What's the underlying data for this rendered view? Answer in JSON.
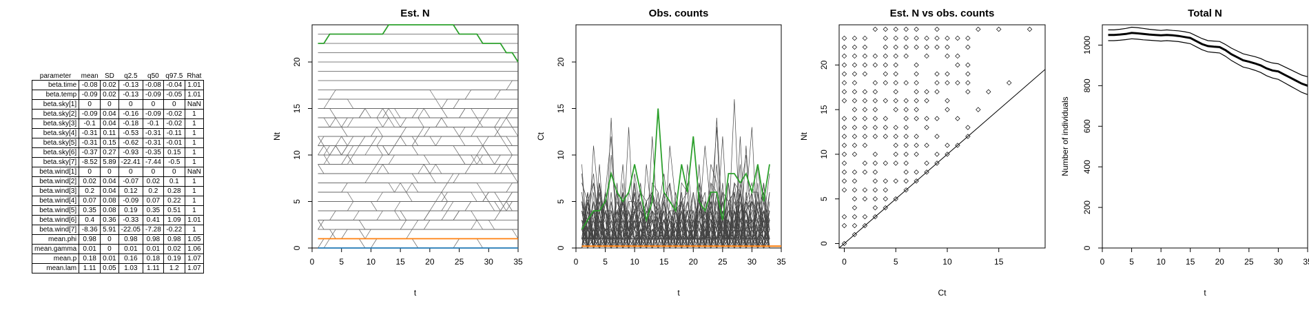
{
  "param_table": {
    "columns": [
      "parameter",
      "mean",
      "SD",
      "q2.5",
      "q50",
      "q97.5",
      "Rhat"
    ],
    "rows": [
      [
        "beta.time",
        "-0.08",
        "0.02",
        "-0.13",
        "-0.08",
        "-0.04",
        "1.01"
      ],
      [
        "beta.temp",
        "-0.09",
        "0.02",
        "-0.13",
        "-0.09",
        "-0.05",
        "1.01"
      ],
      [
        "beta.sky[1]",
        "0",
        "0",
        "0",
        "0",
        "0",
        "NaN"
      ],
      [
        "beta.sky[2]",
        "-0.09",
        "0.04",
        "-0.16",
        "-0.09",
        "-0.02",
        "1"
      ],
      [
        "beta.sky[3]",
        "-0.1",
        "0.04",
        "-0.18",
        "-0.1",
        "-0.02",
        "1"
      ],
      [
        "beta.sky[4]",
        "-0.31",
        "0.11",
        "-0.53",
        "-0.31",
        "-0.11",
        "1"
      ],
      [
        "beta.sky[5]",
        "-0.31",
        "0.15",
        "-0.62",
        "-0.31",
        "-0.01",
        "1"
      ],
      [
        "beta.sky[6]",
        "-0.37",
        "0.27",
        "-0.93",
        "-0.35",
        "0.15",
        "1"
      ],
      [
        "beta.sky[7]",
        "-8.52",
        "5.89",
        "-22.41",
        "-7.44",
        "-0.5",
        "1"
      ],
      [
        "beta.wind[1]",
        "0",
        "0",
        "0",
        "0",
        "0",
        "NaN"
      ],
      [
        "beta.wind[2]",
        "0.02",
        "0.04",
        "-0.07",
        "0.02",
        "0.1",
        "1"
      ],
      [
        "beta.wind[3]",
        "0.2",
        "0.04",
        "0.12",
        "0.2",
        "0.28",
        "1"
      ],
      [
        "beta.wind[4]",
        "0.07",
        "0.08",
        "-0.09",
        "0.07",
        "0.22",
        "1"
      ],
      [
        "beta.wind[5]",
        "0.35",
        "0.08",
        "0.19",
        "0.35",
        "0.51",
        "1"
      ],
      [
        "beta.wind[6]",
        "0.4",
        "0.36",
        "-0.33",
        "0.41",
        "1.09",
        "1.01"
      ],
      [
        "beta.wind[7]",
        "-8.36",
        "5.91",
        "-22.05",
        "-7.28",
        "-0.22",
        "1"
      ],
      [
        "mean.phi",
        "0.98",
        "0",
        "0.98",
        "0.98",
        "0.98",
        "1.05"
      ],
      [
        "mean.gamma",
        "0.01",
        "0",
        "0.01",
        "0.01",
        "0.02",
        "1.06"
      ],
      [
        "mean.p",
        "0.18",
        "0.01",
        "0.16",
        "0.18",
        "0.19",
        "1.07"
      ],
      [
        "mean.lam",
        "1.11",
        "0.05",
        "1.03",
        "1.11",
        "1.2",
        "1.07"
      ]
    ]
  },
  "chart_data": [
    {
      "type": "line",
      "title": "Est. N",
      "xlabel": "t",
      "ylabel": "Nt",
      "xlim": [
        0,
        35
      ],
      "ylim": [
        0,
        24
      ],
      "xticks": [
        "0",
        "5",
        "10",
        "15",
        "20",
        "25",
        "30",
        "35"
      ],
      "yticks": [
        "0",
        "5",
        "10",
        "15",
        "20"
      ],
      "background_levels": [
        0,
        1,
        2,
        3,
        4,
        5,
        6,
        7,
        8,
        9,
        10,
        11,
        12,
        13,
        14,
        15,
        16,
        17,
        18,
        19,
        20,
        21,
        22,
        23
      ],
      "series": [
        {
          "color": "#2ca02c",
          "x": [
            1,
            2,
            3,
            4,
            5,
            6,
            7,
            8,
            9,
            10,
            11,
            12,
            13,
            14,
            15,
            16,
            17,
            18,
            19,
            20,
            21,
            22,
            23,
            24,
            25,
            26,
            27,
            28,
            29,
            30,
            31,
            32,
            33,
            34,
            35
          ],
          "values": [
            22,
            22,
            23,
            23,
            23,
            23,
            23,
            23,
            23,
            23,
            23,
            23,
            24,
            24,
            24,
            24,
            24,
            24,
            24,
            24,
            24,
            24,
            24,
            24,
            23,
            23,
            23,
            23,
            22,
            22,
            22,
            22,
            21,
            21,
            20
          ]
        },
        {
          "color": "#ff7f0e",
          "x": [
            1,
            35
          ],
          "values": [
            1,
            1
          ]
        },
        {
          "color": "#1f77b4",
          "x": [
            1,
            35
          ],
          "values": [
            0,
            0
          ]
        }
      ]
    },
    {
      "type": "line",
      "title": "Obs. counts",
      "xlabel": "t",
      "ylabel": "Ct",
      "xlim": [
        0,
        35
      ],
      "ylim": [
        0,
        24
      ],
      "xticks": [
        "0",
        "5",
        "10",
        "15",
        "20",
        "25",
        "30",
        "35"
      ],
      "yticks": [
        "0",
        "5",
        "10",
        "15",
        "20"
      ],
      "highlight": {
        "color": "#2ca02c",
        "x": [
          1,
          2,
          3,
          4,
          5,
          6,
          7,
          8,
          9,
          10,
          11,
          12,
          13,
          14,
          15,
          16,
          17,
          18,
          19,
          20,
          21,
          22,
          23,
          24,
          25,
          26,
          27,
          28,
          29,
          30,
          31,
          32,
          33
        ],
        "values": [
          2,
          3,
          4,
          4,
          5,
          8,
          6,
          5,
          6,
          9,
          6,
          3,
          5,
          15,
          6,
          5,
          4,
          9,
          6,
          12,
          5,
          4,
          6,
          6,
          3,
          8,
          8,
          7,
          8,
          6,
          9,
          5,
          9
        ]
      },
      "series": [
        {
          "color": "#ff7f0e",
          "x": [
            1,
            35
          ],
          "values": [
            0.2,
            0.2
          ]
        }
      ]
    },
    {
      "type": "scatter",
      "title": "Est. N vs obs. counts",
      "xlabel": "Ct",
      "ylabel": "Nt",
      "xlim": [
        -0.5,
        19.5
      ],
      "ylim": [
        -0.5,
        24.5
      ],
      "xticks": [
        "0",
        "5",
        "10",
        "15"
      ],
      "yticks": [
        "0",
        "5",
        "10",
        "15",
        "20"
      ],
      "marker": "diamond-open",
      "reference_line": "y = x",
      "points": [
        [
          0,
          0
        ],
        [
          1,
          1
        ],
        [
          2,
          2
        ],
        [
          3,
          3
        ],
        [
          4,
          4
        ],
        [
          5,
          5
        ],
        [
          6,
          6
        ],
        [
          7,
          7
        ],
        [
          8,
          8
        ],
        [
          9,
          9
        ],
        [
          10,
          10
        ],
        [
          11,
          11
        ],
        [
          12,
          12
        ],
        [
          13,
          15
        ],
        [
          14,
          17
        ],
        [
          16,
          18
        ],
        [
          18,
          24
        ],
        [
          12,
          22
        ],
        [
          15,
          24
        ],
        [
          13,
          24
        ],
        [
          10,
          23
        ],
        [
          9,
          24
        ],
        [
          8,
          23
        ],
        [
          7,
          24
        ],
        [
          6,
          24
        ],
        [
          5,
          24
        ],
        [
          4,
          24
        ],
        [
          3,
          24
        ],
        [
          2,
          23
        ],
        [
          1,
          23
        ],
        [
          11,
          23
        ],
        [
          12,
          20
        ],
        [
          11,
          18
        ],
        [
          10,
          16
        ],
        [
          9,
          14
        ],
        [
          8,
          13
        ],
        [
          6,
          21
        ],
        [
          5,
          23
        ],
        [
          4,
          22
        ],
        [
          3,
          20
        ]
      ]
    },
    {
      "type": "line",
      "title": "Total N",
      "xlabel": "t",
      "ylabel": "Number of individuals",
      "xlim": [
        0,
        35
      ],
      "ylim": [
        0,
        1100
      ],
      "xticks": [
        "0",
        "5",
        "10",
        "15",
        "20",
        "25",
        "30",
        "35"
      ],
      "yticks": [
        "0",
        "200",
        "400",
        "600",
        "800",
        "1000"
      ],
      "x": [
        1,
        2,
        3,
        4,
        5,
        6,
        7,
        8,
        9,
        10,
        11,
        12,
        13,
        14,
        15,
        16,
        17,
        18,
        19,
        20,
        21,
        22,
        23,
        24,
        25,
        26,
        27,
        28,
        29,
        30,
        31,
        32,
        33,
        34,
        35
      ],
      "series": [
        {
          "name": "",
          "values": [
            1050,
            1050,
            1052,
            1055,
            1060,
            1058,
            1055,
            1052,
            1050,
            1048,
            1050,
            1048,
            1045,
            1040,
            1035,
            1020,
            1005,
            995,
            992,
            990,
            975,
            955,
            940,
            925,
            918,
            910,
            900,
            885,
            875,
            870,
            855,
            840,
            825,
            810,
            800
          ]
        },
        {
          "name": "",
          "values": [
            1075,
            1075,
            1078,
            1082,
            1088,
            1086,
            1082,
            1078,
            1075,
            1072,
            1075,
            1072,
            1070,
            1066,
            1060,
            1046,
            1032,
            1022,
            1020,
            1018,
            1003,
            985,
            971,
            957,
            950,
            943,
            934,
            920,
            912,
            908,
            894,
            880,
            866,
            852,
            844
          ]
        },
        {
          "name": "",
          "values": [
            1022,
            1022,
            1024,
            1027,
            1031,
            1029,
            1026,
            1024,
            1022,
            1020,
            1022,
            1020,
            1017,
            1012,
            1007,
            992,
            977,
            967,
            964,
            961,
            945,
            924,
            908,
            892,
            885,
            876,
            865,
            849,
            838,
            831,
            815,
            799,
            783,
            767,
            756
          ]
        }
      ]
    }
  ]
}
